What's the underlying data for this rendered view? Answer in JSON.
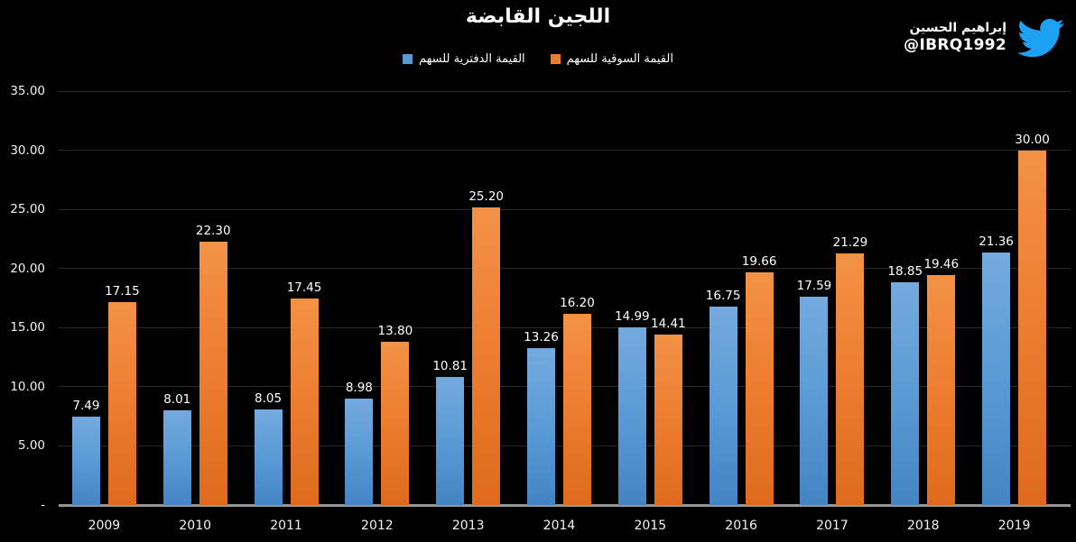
{
  "title": "اللجين القابضة",
  "watermark": {
    "name": "إبراهيم الحسين",
    "handle": "@IBRQ1992",
    "icon": "twitter-bird-icon",
    "icon_color": "#1DA1F2"
  },
  "colors": {
    "background": "#000000",
    "text": "#FFFFFF",
    "gridline": "#2A2A2A",
    "axis_line": "#969696"
  },
  "chart_data": {
    "type": "bar",
    "title": "اللجين القابضة",
    "categories": [
      "2009",
      "2010",
      "2011",
      "2012",
      "2013",
      "2014",
      "2015",
      "2016",
      "2017",
      "2018",
      "2019"
    ],
    "series": [
      {
        "name": "القيمة الدفترية للسهم",
        "color": "#5B9BD5",
        "values": [
          7.49,
          8.01,
          8.05,
          8.98,
          10.81,
          13.26,
          14.99,
          16.75,
          17.59,
          18.85,
          21.36
        ]
      },
      {
        "name": "القيمة السوقية للسهم",
        "color": "#ED7D31",
        "values": [
          17.15,
          22.3,
          17.45,
          13.8,
          25.2,
          16.2,
          14.41,
          19.66,
          21.29,
          19.46,
          30.0
        ]
      }
    ],
    "data_labels": true,
    "data_label_decimals": 2,
    "xlabel": "",
    "ylabel": "",
    "ylim": [
      0,
      35
    ],
    "ytick_step": 5,
    "ytick_labels": [
      "-",
      "5.00",
      "10.00",
      "15.00",
      "20.00",
      "25.00",
      "30.00",
      "35.00"
    ],
    "grid": true,
    "legend_position": "top"
  }
}
